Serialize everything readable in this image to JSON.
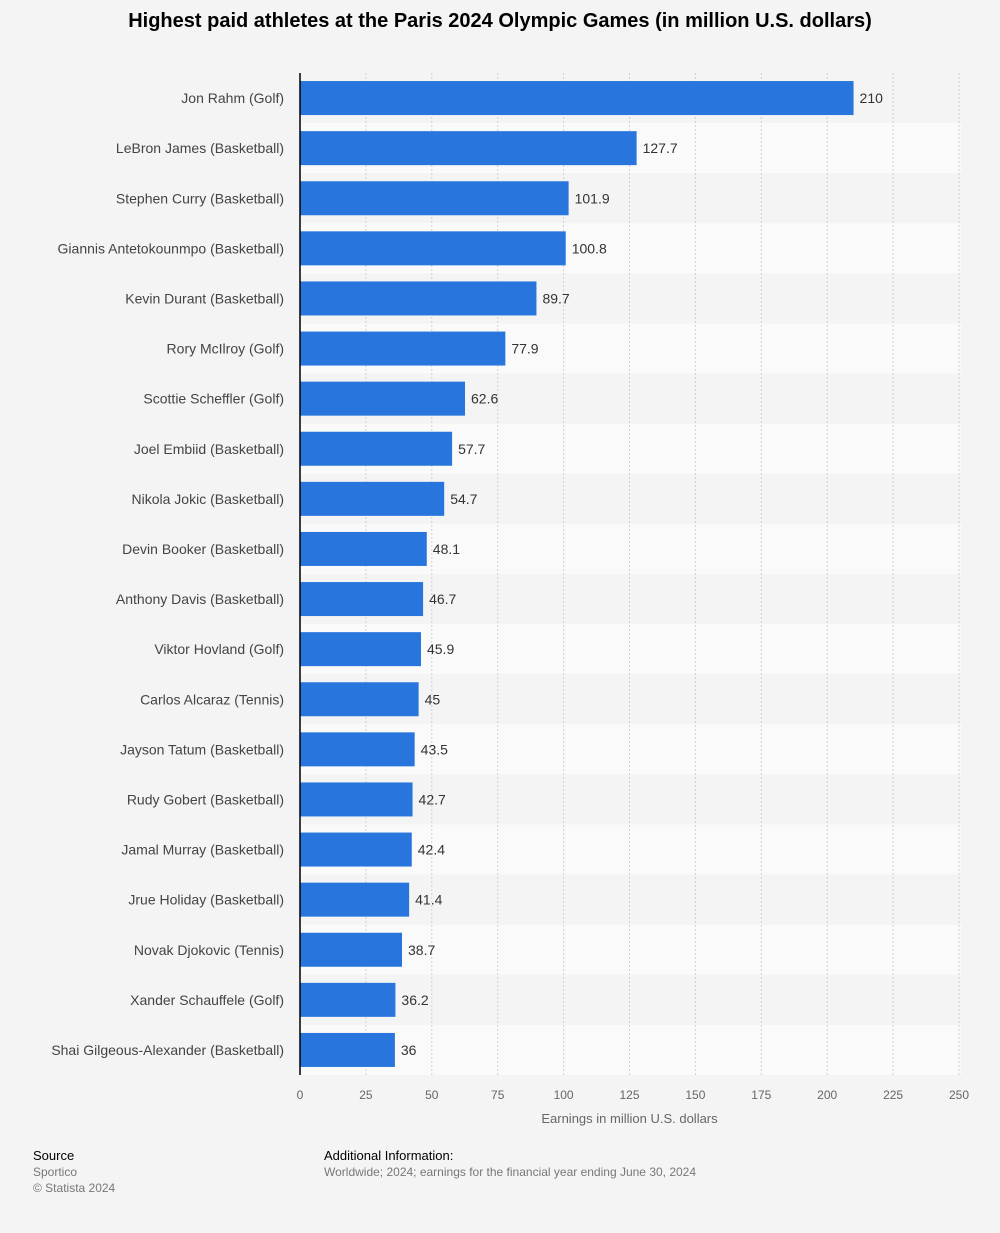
{
  "chart_data": {
    "type": "bar",
    "orientation": "horizontal",
    "title": "Highest paid athletes at the Paris 2024 Olympic Games (in million U.S. dollars)",
    "xlabel": "Earnings in million U.S. dollars",
    "ylabel": "",
    "xlim": [
      0,
      250
    ],
    "xticks": [
      0,
      25,
      50,
      75,
      100,
      125,
      150,
      175,
      200,
      225,
      250
    ],
    "grid": true,
    "bar_color": "#2876dd",
    "categories": [
      "Jon Rahm (Golf)",
      "LeBron James (Basketball)",
      "Stephen Curry (Basketball)",
      "Giannis Antetokounmpo (Basketball)",
      "Kevin Durant (Basketball)",
      "Rory McIlroy (Golf)",
      "Scottie Scheffler (Golf)",
      "Joel Embiid (Basketball)",
      "Nikola Jokic (Basketball)",
      "Devin Booker (Basketball)",
      "Anthony Davis (Basketball)",
      "Viktor Hovland (Golf)",
      "Carlos Alcaraz (Tennis)",
      "Jayson Tatum (Basketball)",
      "Rudy Gobert (Basketball)",
      "Jamal Murray (Basketball)",
      "Jrue Holiday (Basketball)",
      "Novak Djokovic (Tennis)",
      "Xander Schauffele (Golf)",
      "Shai Gilgeous-Alexander (Basketball)"
    ],
    "values": [
      210,
      127.7,
      101.9,
      100.8,
      89.7,
      77.9,
      62.6,
      57.7,
      54.7,
      48.1,
      46.7,
      45.9,
      45,
      43.5,
      42.7,
      42.4,
      41.4,
      38.7,
      36.2,
      36
    ]
  },
  "footer": {
    "source_heading": "Source",
    "source": "Sportico",
    "copyright": "© Statista 2024",
    "info_heading": "Additional Information:",
    "info": "Worldwide; 2024; earnings for the financial year ending June 30, 2024"
  }
}
